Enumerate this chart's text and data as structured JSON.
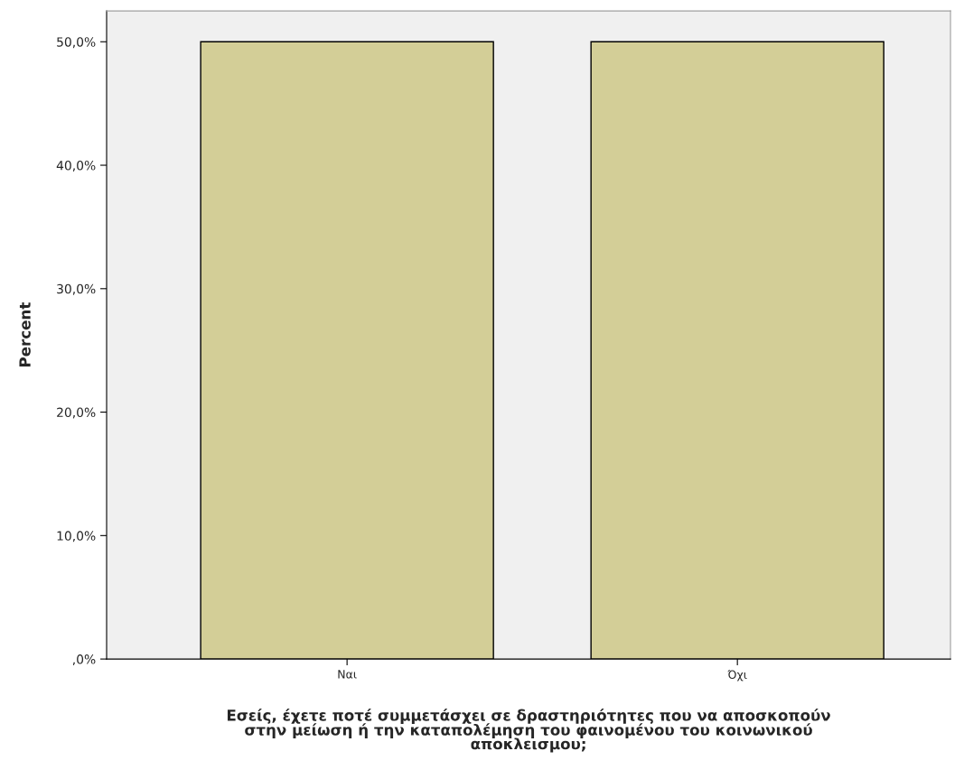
{
  "chart_data": {
    "type": "bar",
    "categories": [
      "Ναι",
      "Όχι"
    ],
    "values": [
      50.0,
      50.0
    ],
    "color": "#d3ce97",
    "xlabel": "Εσείς, έχετε ποτέ συμμετάσχει σε δραστηριότητες που να αποσκοπούν\nστην μείωση ή την καταπολέμηση του φαινομένου του κοινωνικού\nαποκλεισμου;",
    "ylabel": "Percent",
    "ylim": [
      0,
      52.5
    ],
    "yticks": [
      {
        "value": 0,
        "label": ",0%"
      },
      {
        "value": 10,
        "label": "10,0%"
      },
      {
        "value": 20,
        "label": "20,0%"
      },
      {
        "value": 30,
        "label": "30,0%"
      },
      {
        "value": 40,
        "label": "40,0%"
      },
      {
        "value": 50,
        "label": "50,0%"
      }
    ],
    "grid": false,
    "legend": false
  }
}
